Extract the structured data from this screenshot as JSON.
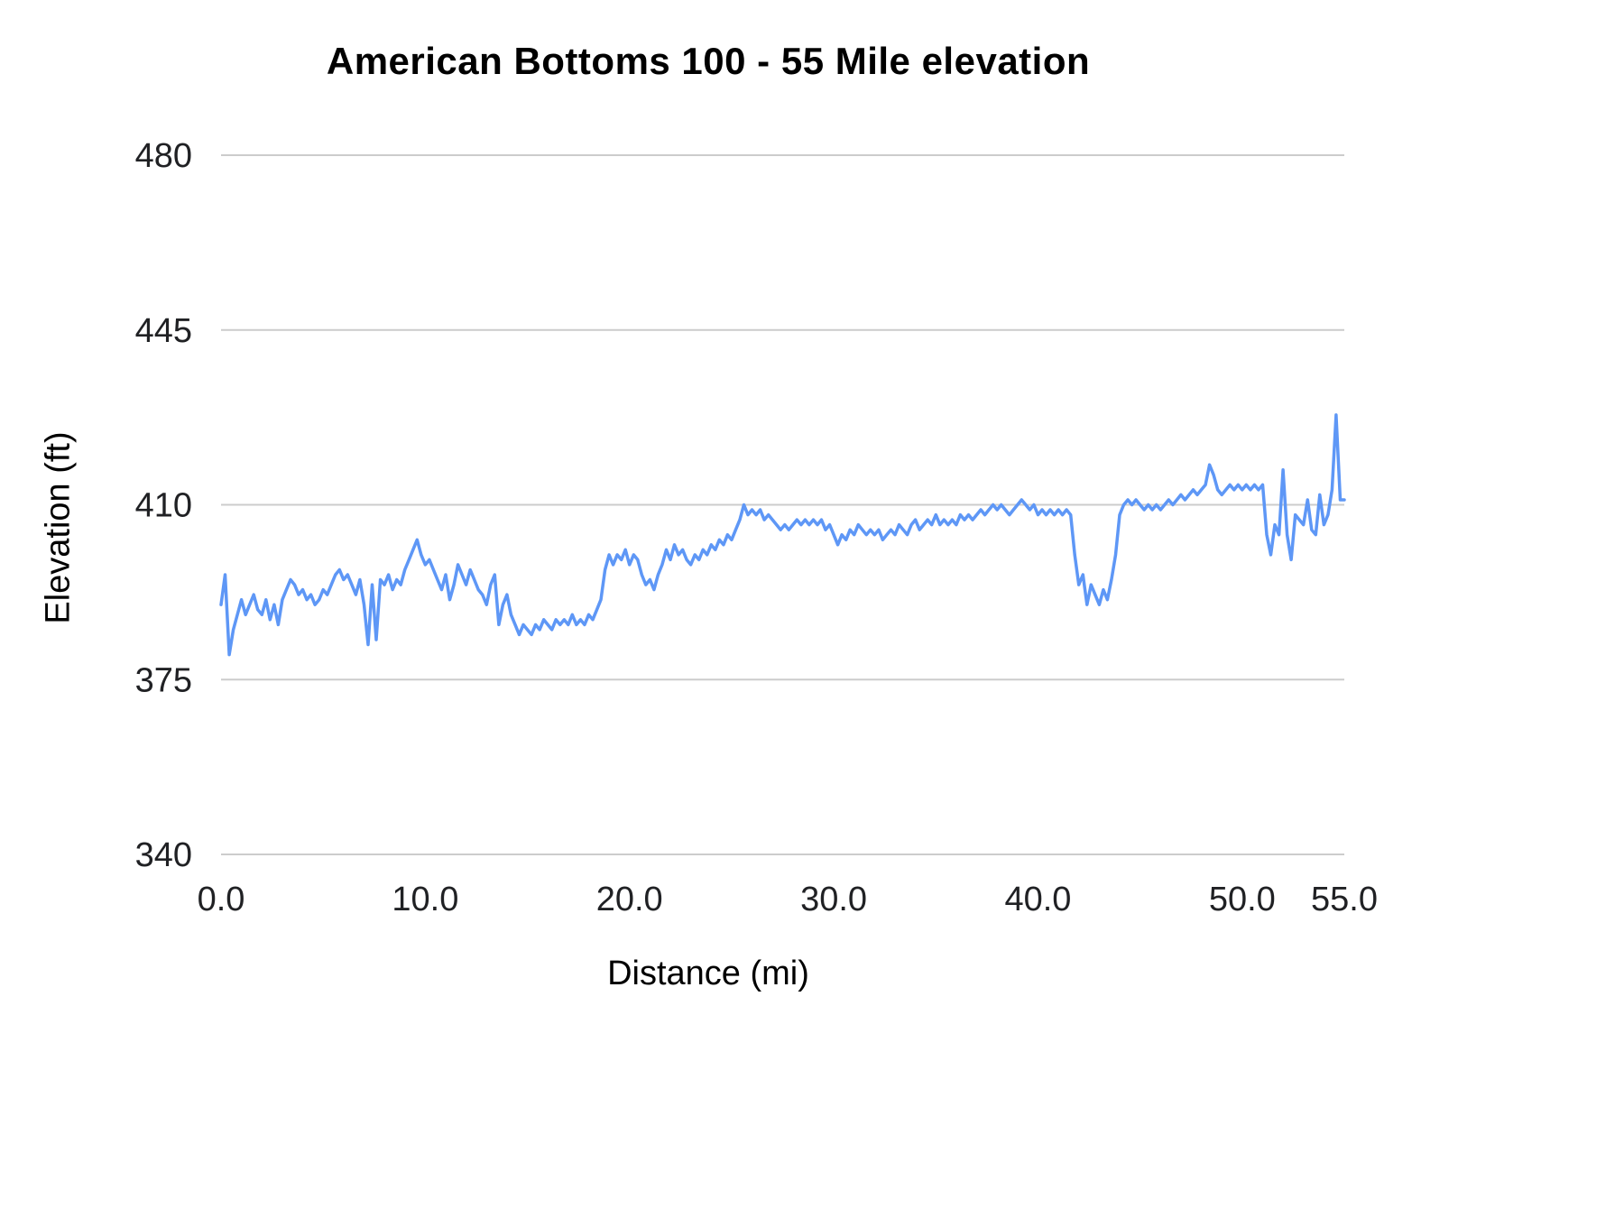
{
  "chart_data": {
    "type": "line",
    "title": "American Bottoms 100 - 55 Mile elevation",
    "xlabel": "Distance (mi)",
    "ylabel": "Elevation (ft)",
    "xlim": [
      0,
      55
    ],
    "ylim": [
      340,
      480
    ],
    "x_ticks": [
      0,
      10,
      20,
      30,
      40,
      50,
      55
    ],
    "x_tick_labels": [
      "0.0",
      "10.0",
      "20.0",
      "30.0",
      "40.0",
      "50.0",
      "55.0"
    ],
    "y_ticks": [
      340,
      375,
      410,
      445,
      480
    ],
    "y_tick_labels": [
      "340",
      "375",
      "410",
      "445",
      "480"
    ],
    "grid": true,
    "legend_position": "none",
    "line_color": "#5e97f6",
    "gridline_color": "#cccccc",
    "series": [
      {
        "name": "Elevation",
        "x_start": 0,
        "x_step": 0.2,
        "values": [
          390,
          396,
          380,
          385,
          388,
          391,
          388,
          390,
          392,
          389,
          388,
          391,
          387,
          390,
          386,
          391,
          393,
          395,
          394,
          392,
          393,
          391,
          392,
          390,
          391,
          393,
          392,
          394,
          396,
          397,
          395,
          396,
          394,
          392,
          395,
          390,
          382,
          394,
          383,
          395,
          394,
          396,
          393,
          395,
          394,
          397,
          399,
          401,
          403,
          400,
          398,
          399,
          397,
          395,
          393,
          396,
          391,
          394,
          398,
          396,
          394,
          397,
          395,
          393,
          392,
          390,
          394,
          396,
          386,
          390,
          392,
          388,
          386,
          384,
          386,
          385,
          384,
          386,
          385,
          387,
          386,
          385,
          387,
          386,
          387,
          386,
          388,
          386,
          387,
          386,
          388,
          387,
          389,
          391,
          397,
          400,
          398,
          400,
          399,
          401,
          398,
          400,
          399,
          396,
          394,
          395,
          393,
          396,
          398,
          401,
          399,
          402,
          400,
          401,
          399,
          398,
          400,
          399,
          401,
          400,
          402,
          401,
          403,
          402,
          404,
          403,
          405,
          407,
          410,
          408,
          409,
          408,
          409,
          407,
          408,
          407,
          406,
          405,
          406,
          405,
          406,
          407,
          406,
          407,
          406,
          407,
          406,
          407,
          405,
          406,
          404,
          402,
          404,
          403,
          405,
          404,
          406,
          405,
          404,
          405,
          404,
          405,
          403,
          404,
          405,
          404,
          406,
          405,
          404,
          406,
          407,
          405,
          406,
          407,
          406,
          408,
          406,
          407,
          406,
          407,
          406,
          408,
          407,
          408,
          407,
          408,
          409,
          408,
          409,
          410,
          409,
          410,
          409,
          408,
          409,
          410,
          411,
          410,
          409,
          410,
          408,
          409,
          408,
          409,
          408,
          409,
          408,
          409,
          408,
          400,
          394,
          396,
          390,
          394,
          392,
          390,
          393,
          391,
          395,
          400,
          408,
          410,
          411,
          410,
          411,
          410,
          409,
          410,
          409,
          410,
          409,
          410,
          411,
          410,
          411,
          412,
          411,
          412,
          413,
          412,
          413,
          414,
          418,
          416,
          413,
          412,
          413,
          414,
          413,
          414,
          413,
          414,
          413,
          414,
          413,
          414,
          404,
          400,
          406,
          404,
          417,
          404,
          399,
          408,
          407,
          406,
          411,
          405,
          404,
          412,
          406,
          408,
          413,
          428,
          411,
          411
        ]
      }
    ]
  }
}
